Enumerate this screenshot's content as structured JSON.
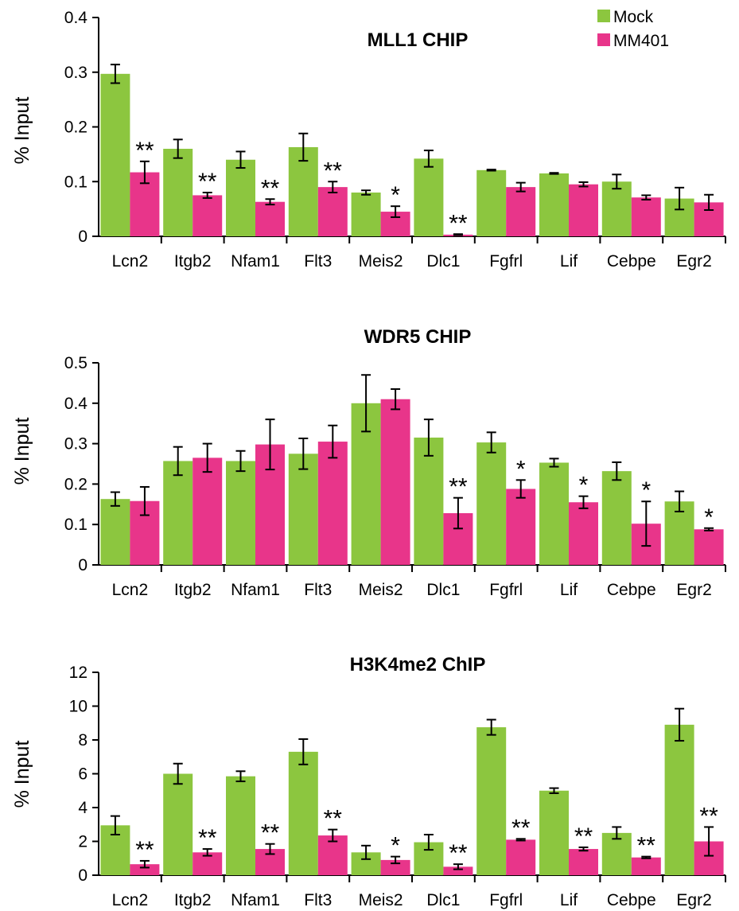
{
  "colors": {
    "mock": "#8cc63f",
    "mm401": "#e8358a",
    "axis": "#000000"
  },
  "legend": [
    {
      "name": "Mock",
      "color_key": "mock"
    },
    {
      "name": "MM401",
      "color_key": "mm401"
    }
  ],
  "chart_data": [
    {
      "type": "bar",
      "title": "MLL1 CHIP",
      "ylabel": "% Input",
      "ylim": [
        0,
        0.4
      ],
      "yticks": [
        "0",
        "0.1",
        "0.2",
        "0.3",
        "0.4"
      ],
      "categories": [
        "Lcn2",
        "Itgb2",
        "Nfam1",
        "Flt3",
        "Meis2",
        "Dlc1",
        "Fgfrl",
        "Lif",
        "Cebpe",
        "Egr2"
      ],
      "series": [
        {
          "name": "Mock",
          "values": [
            0.297,
            0.16,
            0.14,
            0.163,
            0.08,
            0.142,
            0.121,
            0.115,
            0.1,
            0.069
          ],
          "errors": [
            0.017,
            0.017,
            0.015,
            0.025,
            0.004,
            0.015,
            0.001,
            0.001,
            0.013,
            0.02
          ]
        },
        {
          "name": "MM401",
          "values": [
            0.117,
            0.075,
            0.063,
            0.09,
            0.045,
            0.003,
            0.09,
            0.095,
            0.071,
            0.062
          ],
          "errors": [
            0.02,
            0.005,
            0.005,
            0.01,
            0.01,
            0.001,
            0.008,
            0.004,
            0.004,
            0.014
          ]
        }
      ],
      "significance": [
        "**",
        "**",
        "**",
        "**",
        "*",
        "**",
        "",
        "",
        "",
        ""
      ]
    },
    {
      "type": "bar",
      "title": "WDR5 CHIP",
      "ylabel": "% Input",
      "ylim": [
        0,
        0.5
      ],
      "yticks": [
        "0",
        "0.1",
        "0.2",
        "0.3",
        "0.4",
        "0.5"
      ],
      "categories": [
        "Lcn2",
        "Itgb2",
        "Nfam1",
        "Flt3",
        "Meis2",
        "Dlc1",
        "Fgfrl",
        "Lif",
        "Cebpe",
        "Egr2"
      ],
      "series": [
        {
          "name": "Mock",
          "values": [
            0.163,
            0.257,
            0.257,
            0.275,
            0.4,
            0.315,
            0.303,
            0.253,
            0.232,
            0.157
          ],
          "errors": [
            0.017,
            0.035,
            0.025,
            0.038,
            0.07,
            0.045,
            0.025,
            0.01,
            0.022,
            0.025
          ]
        },
        {
          "name": "MM401",
          "values": [
            0.158,
            0.265,
            0.298,
            0.305,
            0.41,
            0.128,
            0.188,
            0.155,
            0.102,
            0.088
          ],
          "errors": [
            0.035,
            0.035,
            0.062,
            0.04,
            0.025,
            0.038,
            0.022,
            0.015,
            0.055,
            0.003
          ]
        }
      ],
      "significance": [
        "",
        "",
        "",
        "",
        "",
        "**",
        "*",
        "*",
        "*",
        "*"
      ]
    },
    {
      "type": "bar",
      "title": "H3K4me2 ChIP",
      "ylabel": "% Input",
      "ylim": [
        0,
        12
      ],
      "yticks": [
        "0",
        "2",
        "4",
        "6",
        "8",
        "10",
        "12"
      ],
      "categories": [
        "Lcn2",
        "Itgb2",
        "Nfam1",
        "Flt3",
        "Meis2",
        "Dlc1",
        "Fgfrl",
        "Lif",
        "Cebpe",
        "Egr2"
      ],
      "series": [
        {
          "name": "Mock",
          "values": [
            2.95,
            6.0,
            5.85,
            7.3,
            1.35,
            1.95,
            8.75,
            5.0,
            2.5,
            8.9
          ],
          "errors": [
            0.55,
            0.6,
            0.3,
            0.75,
            0.4,
            0.45,
            0.45,
            0.15,
            0.35,
            0.95
          ]
        },
        {
          "name": "MM401",
          "values": [
            0.65,
            1.35,
            1.55,
            2.35,
            0.9,
            0.5,
            2.1,
            1.55,
            1.05,
            2.0
          ],
          "errors": [
            0.2,
            0.2,
            0.3,
            0.35,
            0.2,
            0.15,
            0.05,
            0.1,
            0.05,
            0.85
          ]
        }
      ],
      "significance": [
        "**",
        "**",
        "**",
        "**",
        "*",
        "**",
        "**",
        "**",
        "**",
        "**"
      ]
    }
  ]
}
